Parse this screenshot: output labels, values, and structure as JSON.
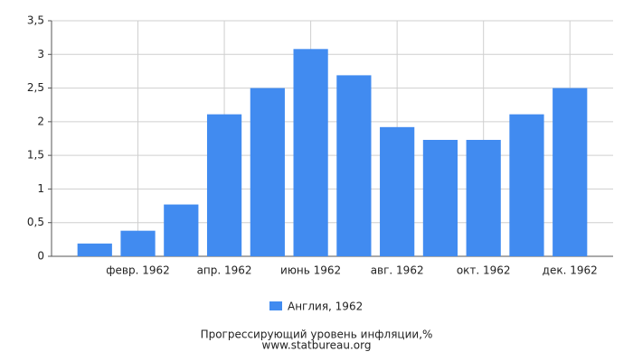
{
  "chart_data": {
    "type": "bar",
    "title": "Прогрессирующий уровень инфляции,%",
    "subtitle": "www.statbureau.org",
    "categories": [
      null,
      "февр. 1962",
      null,
      "апр. 1962",
      null,
      "июнь 1962",
      null,
      "авг. 1962",
      null,
      "окт. 1962",
      null,
      "дек. 1962"
    ],
    "series": [
      {
        "name": "Англия, 1962",
        "color": "#418bf0",
        "values": [
          0.19,
          0.38,
          0.77,
          2.11,
          2.5,
          3.08,
          2.69,
          1.92,
          1.73,
          1.73,
          2.11,
          2.5
        ]
      }
    ],
    "ylim": [
      0,
      3.5
    ],
    "yticks": [
      0,
      {
        "value": 0.5,
        "label": "0,5"
      },
      1,
      {
        "value": 1.5,
        "label": "1,5"
      },
      2,
      {
        "value": 2.5,
        "label": "2,5"
      },
      3,
      {
        "value": 3.5,
        "label": "3,5"
      }
    ],
    "grid": true
  }
}
